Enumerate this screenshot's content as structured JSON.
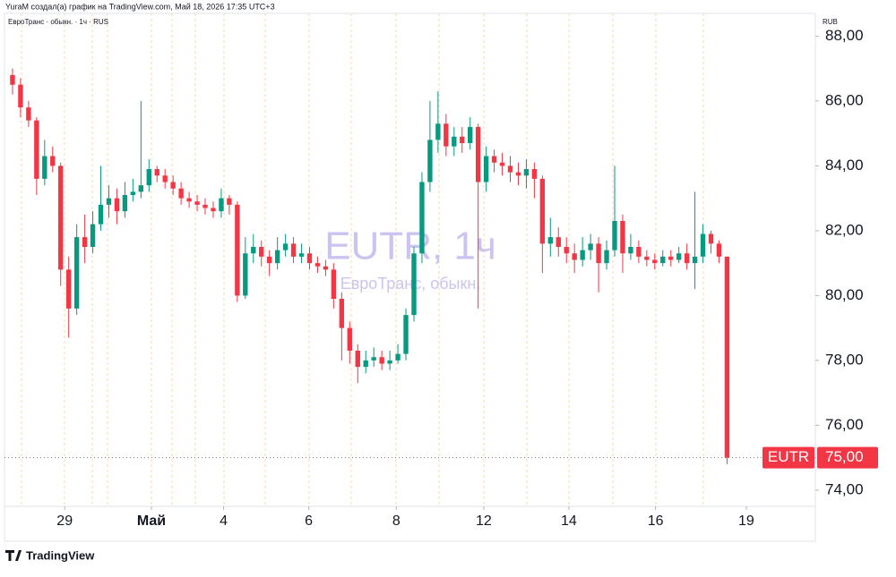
{
  "header": {
    "credit": "YuraM создал(а) график на TradingView.com, Май 18, 2026 17:35 UTC+3"
  },
  "chart_data": {
    "type": "candlestick",
    "legend": "ЕвроТранс · обыкн. · 1ч · RUS",
    "currency": "RUB",
    "watermark": "EUTR, 1ч",
    "watermark_subtitle": "ЕвроТранс, обыкн.",
    "up_color": "#089981",
    "down_color": "#f23645",
    "x": [
      0,
      1,
      2,
      3,
      4,
      5,
      6,
      7,
      8,
      9,
      10,
      11,
      12,
      13,
      14,
      15,
      16,
      17,
      18,
      19,
      20,
      21,
      22,
      23,
      24,
      25,
      26,
      27,
      28,
      29,
      30,
      31,
      32,
      33,
      34,
      35,
      36,
      37,
      38,
      39,
      40,
      41,
      42,
      43,
      44,
      45,
      46,
      47,
      48,
      49,
      50,
      51,
      52,
      53,
      54,
      55,
      56,
      57,
      58,
      59,
      60,
      61,
      62,
      63,
      64,
      65,
      66,
      67,
      68,
      69,
      70,
      71,
      72,
      73,
      74,
      75,
      76,
      77,
      78,
      79,
      80,
      81,
      82,
      83,
      84,
      85,
      86,
      87,
      88,
      89
    ],
    "open": [
      86.8,
      86.5,
      85.8,
      85.4,
      83.6,
      84.3,
      84.0,
      80.8,
      79.6,
      81.8,
      81.5,
      82.2,
      82.8,
      83.0,
      82.6,
      83.1,
      83.2,
      83.4,
      83.9,
      83.7,
      83.5,
      83.3,
      83.0,
      82.9,
      82.8,
      82.7,
      82.6,
      83.0,
      82.8,
      80.0,
      81.3,
      81.5,
      81.2,
      81.0,
      81.4,
      81.6,
      81.2,
      81.3,
      81.0,
      80.9,
      80.8,
      79.9,
      79.0,
      78.3,
      77.8,
      78.0,
      78.1,
      77.9,
      78.0,
      78.2,
      79.4,
      81.3,
      83.5,
      84.8,
      85.3,
      84.6,
      84.9,
      84.7,
      85.2,
      83.5,
      84.3,
      84.1,
      84.0,
      83.8,
      83.7,
      83.9,
      83.6,
      81.6,
      81.8,
      81.5,
      81.3,
      81.1,
      81.4,
      81.6,
      81.0,
      81.4,
      82.3,
      81.3,
      81.5,
      81.2,
      81.1,
      81.0,
      81.2,
      81.1,
      81.3,
      81.0,
      81.2,
      81.9,
      81.6,
      81.2
    ],
    "high": [
      87.0,
      86.7,
      86.0,
      85.5,
      84.8,
      84.6,
      84.1,
      81.2,
      82.2,
      82.5,
      82.6,
      84.0,
      83.4,
      83.3,
      83.5,
      83.6,
      86.0,
      84.2,
      84.0,
      83.9,
      83.7,
      83.5,
      83.2,
      83.1,
      83.0,
      82.9,
      83.3,
      83.1,
      82.9,
      81.8,
      81.9,
      81.7,
      81.4,
      81.8,
      81.9,
      81.8,
      81.6,
      81.5,
      81.2,
      81.1,
      81.0,
      80.1,
      79.2,
      78.5,
      78.3,
      78.4,
      78.3,
      78.3,
      78.5,
      79.6,
      81.5,
      83.8,
      86.0,
      86.3,
      85.6,
      85.2,
      85.2,
      85.5,
      85.3,
      84.6,
      84.5,
      84.4,
      84.3,
      84.1,
      84.2,
      84.1,
      83.7,
      82.4,
      82.1,
      81.8,
      81.6,
      81.8,
      81.9,
      81.8,
      81.7,
      84.0,
      82.5,
      81.9,
      81.7,
      81.4,
      81.3,
      81.4,
      81.4,
      81.5,
      81.6,
      83.2,
      82.2,
      82.0,
      81.7,
      81.2
    ],
    "low": [
      86.2,
      85.5,
      85.2,
      83.1,
      83.4,
      83.8,
      80.3,
      78.7,
      79.4,
      81.0,
      81.3,
      82.0,
      82.4,
      82.2,
      82.4,
      82.9,
      83.0,
      83.2,
      83.5,
      83.3,
      83.1,
      82.8,
      82.7,
      82.6,
      82.5,
      82.4,
      82.4,
      82.5,
      79.8,
      79.9,
      81.0,
      80.9,
      80.6,
      80.8,
      81.2,
      81.0,
      81.0,
      80.8,
      80.7,
      80.6,
      79.6,
      78.0,
      77.9,
      77.3,
      77.6,
      77.8,
      77.7,
      77.7,
      77.9,
      78.0,
      79.2,
      81.0,
      83.2,
      84.4,
      84.3,
      84.3,
      84.4,
      84.5,
      79.6,
      83.2,
      83.8,
      83.7,
      83.5,
      83.4,
      83.3,
      83.0,
      80.7,
      81.2,
      81.2,
      81.0,
      80.7,
      80.9,
      81.1,
      80.1,
      80.8,
      81.2,
      80.7,
      81.1,
      81.0,
      80.9,
      80.8,
      80.9,
      80.9,
      81.0,
      80.8,
      80.2,
      81.0,
      81.3,
      81.0,
      74.8
    ],
    "close": [
      86.5,
      85.8,
      85.4,
      83.6,
      84.3,
      84.0,
      80.8,
      79.6,
      81.8,
      81.5,
      82.2,
      82.8,
      83.0,
      82.6,
      83.1,
      83.2,
      83.4,
      83.9,
      83.7,
      83.5,
      83.3,
      83.0,
      82.9,
      82.8,
      82.7,
      82.6,
      83.0,
      82.8,
      80.0,
      81.3,
      81.5,
      81.2,
      81.0,
      81.4,
      81.6,
      81.2,
      81.3,
      81.0,
      80.9,
      80.8,
      79.9,
      79.0,
      78.3,
      77.8,
      78.0,
      78.1,
      77.9,
      78.0,
      78.2,
      79.4,
      81.3,
      83.5,
      84.8,
      85.3,
      84.6,
      84.9,
      84.7,
      85.2,
      83.5,
      84.3,
      84.1,
      84.0,
      83.8,
      83.7,
      83.9,
      83.6,
      81.6,
      81.8,
      81.5,
      81.3,
      81.1,
      81.4,
      81.6,
      81.0,
      81.4,
      82.3,
      81.3,
      81.5,
      81.2,
      81.1,
      81.0,
      81.2,
      81.1,
      81.3,
      81.0,
      81.2,
      81.9,
      81.6,
      81.2,
      75.0
    ],
    "xlim": [
      -1,
      100
    ],
    "xticks": [
      {
        "value": 6.5,
        "label": "29"
      },
      {
        "value": 17.3,
        "label": "Май"
      },
      {
        "value": 26.3,
        "label": "4"
      },
      {
        "value": 36.9,
        "label": "6"
      },
      {
        "value": 47.8,
        "label": "8"
      },
      {
        "value": 58.7,
        "label": "12"
      },
      {
        "value": 69.3,
        "label": "14"
      },
      {
        "value": 80.1,
        "label": "16"
      },
      {
        "value": 91.4,
        "label": "19"
      }
    ],
    "ylim": [
      73.5,
      88.7
    ],
    "yticks": [
      {
        "value": 74,
        "label": "74,00"
      },
      {
        "value": 76,
        "label": "76,00"
      },
      {
        "value": 78,
        "label": "78,00"
      },
      {
        "value": 80,
        "label": "80,00"
      },
      {
        "value": 82,
        "label": "82,00"
      },
      {
        "value": 84,
        "label": "84,00"
      },
      {
        "value": 86,
        "label": "86,00"
      },
      {
        "value": 88,
        "label": "88,00"
      }
    ],
    "last_price": {
      "ticker": "EUTR",
      "value": 75.0,
      "label": "75,00"
    }
  },
  "footer": {
    "brand": "TradingView"
  }
}
